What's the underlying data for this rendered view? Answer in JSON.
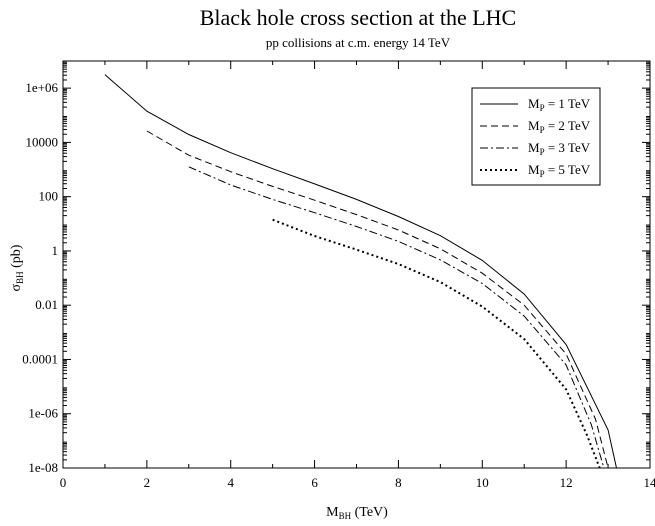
{
  "chart_data": {
    "type": "line",
    "title": "Black hole cross section at the LHC",
    "subtitle": "pp collisions at c.m. energy 14 TeV",
    "xlabel": {
      "main": "M",
      "sub": "BH",
      "tail": " (TeV)"
    },
    "ylabel": {
      "main": "σ",
      "sub": "BH",
      "tail": " (pb)"
    },
    "xlim": [
      0,
      14
    ],
    "ylim_log10": [
      -8,
      7
    ],
    "yscale": "log",
    "grid": false,
    "legend_position": "top-right",
    "xticks": [
      0,
      2,
      4,
      6,
      8,
      10,
      12,
      14
    ],
    "xtick_labels": [
      "0",
      "2",
      "4",
      "6",
      "8",
      "10",
      "12",
      "14"
    ],
    "ytick_log10": [
      -8,
      -6,
      -4,
      -2,
      0,
      2,
      4,
      6
    ],
    "ytick_labels": [
      "1e-08",
      "1e-06",
      "0.0001",
      "0.01",
      "1",
      "100",
      "10000",
      "1e+06"
    ],
    "series": [
      {
        "name": {
          "main": "M",
          "sub": "P",
          "tail": " = 1 TeV"
        },
        "dash": "solid",
        "x": [
          1,
          2,
          3,
          4,
          5,
          6,
          7,
          8,
          9,
          10,
          11,
          12,
          13,
          13.2
        ],
        "log10_y": [
          6.5,
          5.15,
          4.29,
          3.62,
          3.03,
          2.47,
          1.9,
          1.27,
          0.56,
          -0.35,
          -1.59,
          -3.45,
          -6.6,
          -8
        ]
      },
      {
        "name": {
          "main": "M",
          "sub": "P",
          "tail": " = 2 TeV"
        },
        "dash": "dashed",
        "x": [
          2,
          3,
          4,
          5,
          6,
          7,
          8,
          9,
          10,
          11,
          12,
          12.7,
          13
        ],
        "log10_y": [
          4.42,
          3.53,
          2.92,
          2.38,
          1.87,
          1.34,
          0.77,
          0.08,
          -0.82,
          -2.0,
          -3.8,
          -6.2,
          -8
        ]
      },
      {
        "name": {
          "main": "M",
          "sub": "P",
          "tail": " = 3 TeV"
        },
        "dash": "dashdot",
        "x": [
          3,
          4,
          5,
          6,
          7,
          8,
          9,
          10,
          11,
          12,
          12.6,
          12.9
        ],
        "log10_y": [
          3.1,
          2.43,
          1.9,
          1.41,
          0.9,
          0.35,
          -0.33,
          -1.2,
          -2.4,
          -4.2,
          -6.4,
          -8
        ]
      },
      {
        "name": {
          "main": "M",
          "sub": "P",
          "tail": " = 5 TeV"
        },
        "dash": "dotted",
        "x": [
          5,
          6,
          7,
          8,
          9,
          10,
          11,
          12,
          12.5,
          12.8
        ],
        "log10_y": [
          1.15,
          0.55,
          0.05,
          -0.48,
          -1.15,
          -2.05,
          -3.25,
          -5.1,
          -6.8,
          -8
        ]
      }
    ]
  }
}
